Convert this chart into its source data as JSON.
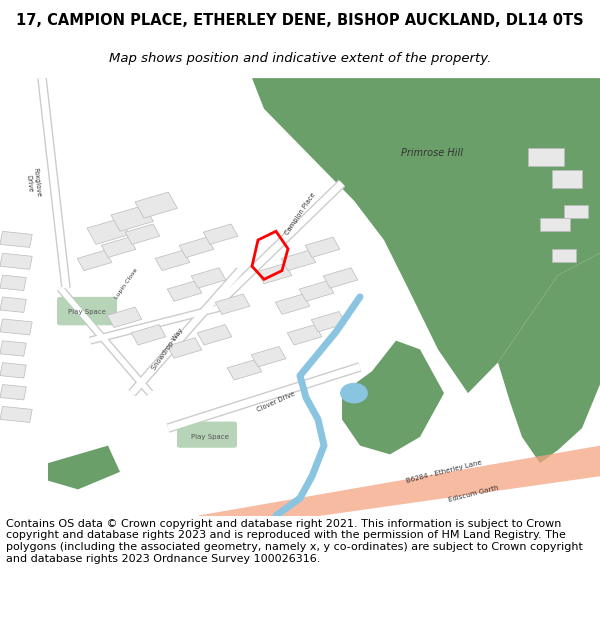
{
  "title_line1": "17, CAMPION PLACE, ETHERLEY DENE, BISHOP AUCKLAND, DL14 0TS",
  "title_line2": "Map shows position and indicative extent of the property.",
  "footer_text": "Contains OS data © Crown copyright and database right 2021. This information is subject to Crown copyright and database rights 2023 and is reproduced with the permission of HM Land Registry. The polygons (including the associated geometry, namely x, y co-ordinates) are subject to Crown copyright and database rights 2023 Ordnance Survey 100026316.",
  "bg_color": "#ffffff",
  "map_bg": "#f8f8f8",
  "title_fontsize": 10.5,
  "subtitle_fontsize": 9.5,
  "footer_fontsize": 8.0,
  "green_area_color": "#6a9f6a",
  "light_green_color": "#b8d4b8",
  "building_color": "#e8e8e8",
  "building_border": "#bbbbbb",
  "salmon_road_color": "#f4a582",
  "blue_river_color": "#89c4e1",
  "plot_color": "#ff0000"
}
